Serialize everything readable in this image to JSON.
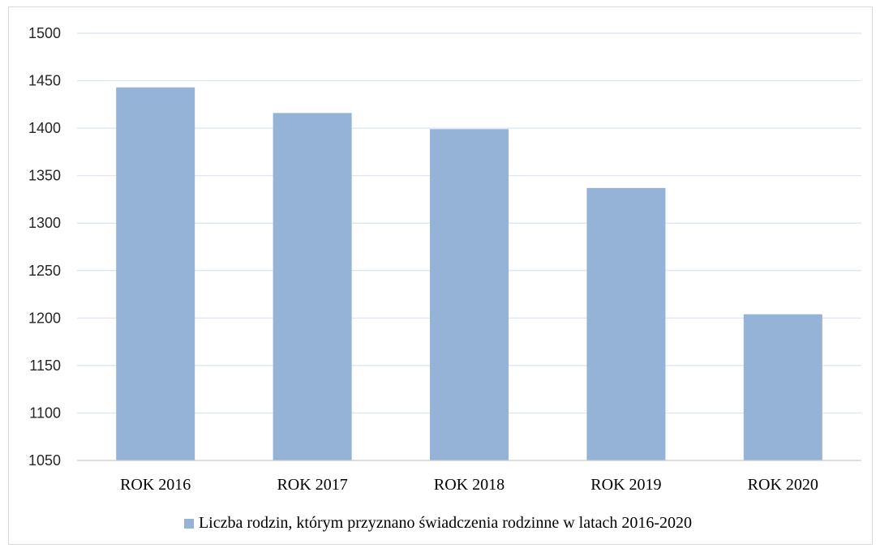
{
  "chart_data": {
    "type": "bar",
    "categories": [
      "ROK 2016",
      "ROK 2017",
      "ROK 2018",
      "ROK 2019",
      "ROK 2020"
    ],
    "series": [
      {
        "name": "Liczba rodzin, którym przyznano świadczenia rodzinne w latach 2016-2020",
        "values": [
          1443,
          1416,
          1399,
          1337,
          1204
        ],
        "color": "#95b3d7"
      }
    ],
    "yticks": [
      1050,
      1100,
      1150,
      1200,
      1250,
      1300,
      1350,
      1400,
      1450,
      1500
    ],
    "ylim": [
      1050,
      1500
    ],
    "grid": true,
    "legend_position": "bottom"
  }
}
